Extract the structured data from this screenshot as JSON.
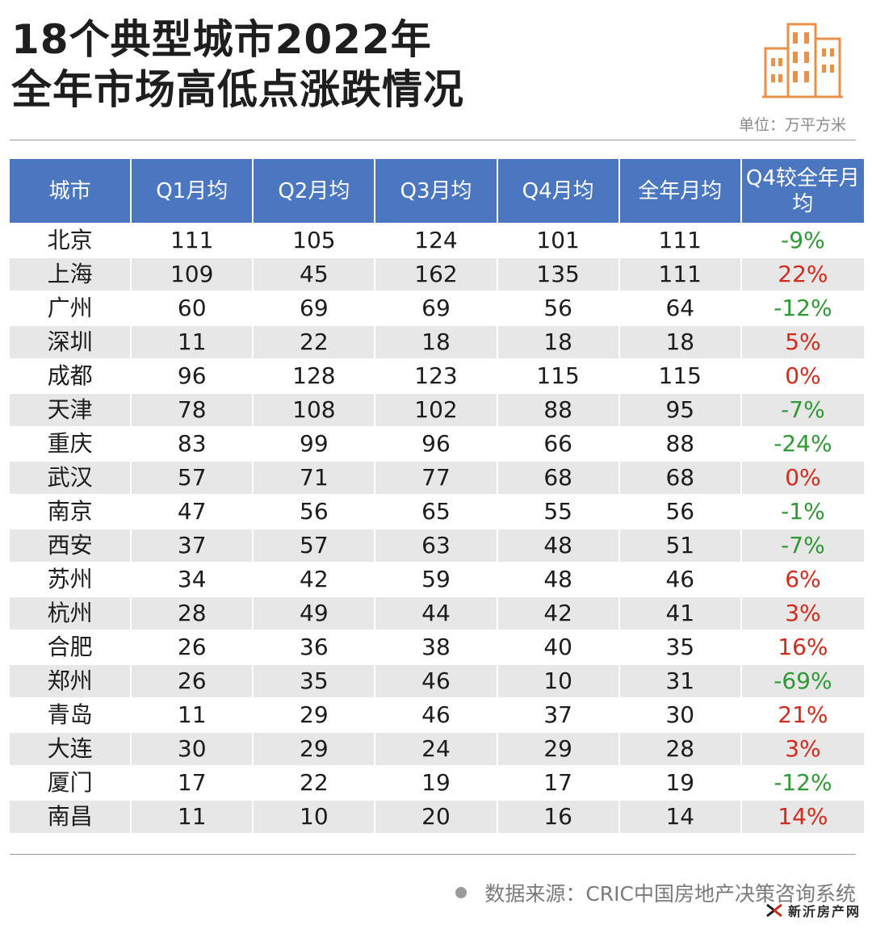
{
  "title": {
    "line1": "18个典型城市2022年",
    "line2": "全年市场高低点涨跌情况"
  },
  "unit_label": "单位：万平方米",
  "icons": {
    "logo": "city-buildings-icon",
    "brand": "xinyi-fangchan-logo"
  },
  "colors": {
    "header_bg": "#4a77bf",
    "positive": "#d42a1c",
    "negative": "#2d9a33",
    "logo": "#e8914a"
  },
  "chart_data": {
    "type": "table",
    "columns": [
      "城市",
      "Q1月均",
      "Q2月均",
      "Q3月均",
      "Q4月均",
      "全年月均",
      "Q4较全年月均"
    ],
    "rows": [
      [
        "北京",
        "111",
        "105",
        "124",
        "101",
        "111",
        "-9%"
      ],
      [
        "上海",
        "109",
        "45",
        "162",
        "135",
        "111",
        "22%"
      ],
      [
        "广州",
        "60",
        "69",
        "69",
        "56",
        "64",
        "-12%"
      ],
      [
        "深圳",
        "11",
        "22",
        "18",
        "18",
        "18",
        "5%"
      ],
      [
        "成都",
        "96",
        "128",
        "123",
        "115",
        "115",
        "0%"
      ],
      [
        "天津",
        "78",
        "108",
        "102",
        "88",
        "95",
        "-7%"
      ],
      [
        "重庆",
        "83",
        "99",
        "96",
        "66",
        "88",
        "-24%"
      ],
      [
        "武汉",
        "57",
        "71",
        "77",
        "68",
        "68",
        "0%"
      ],
      [
        "南京",
        "47",
        "56",
        "65",
        "55",
        "56",
        "-1%"
      ],
      [
        "西安",
        "37",
        "57",
        "63",
        "48",
        "51",
        "-7%"
      ],
      [
        "苏州",
        "34",
        "42",
        "59",
        "48",
        "46",
        "6%"
      ],
      [
        "杭州",
        "28",
        "49",
        "44",
        "42",
        "41",
        "3%"
      ],
      [
        "合肥",
        "26",
        "36",
        "38",
        "40",
        "35",
        "16%"
      ],
      [
        "郑州",
        "26",
        "35",
        "46",
        "10",
        "31",
        "-69%"
      ],
      [
        "青岛",
        "11",
        "29",
        "46",
        "37",
        "30",
        "21%"
      ],
      [
        "大连",
        "30",
        "29",
        "24",
        "29",
        "28",
        "3%"
      ],
      [
        "厦门",
        "17",
        "22",
        "19",
        "17",
        "19",
        "-12%"
      ],
      [
        "南昌",
        "11",
        "10",
        "20",
        "16",
        "14",
        "14%"
      ]
    ]
  },
  "source": "数据来源：CRIC中国房地产决策咨询系统",
  "brand_name": "新沂房产网"
}
